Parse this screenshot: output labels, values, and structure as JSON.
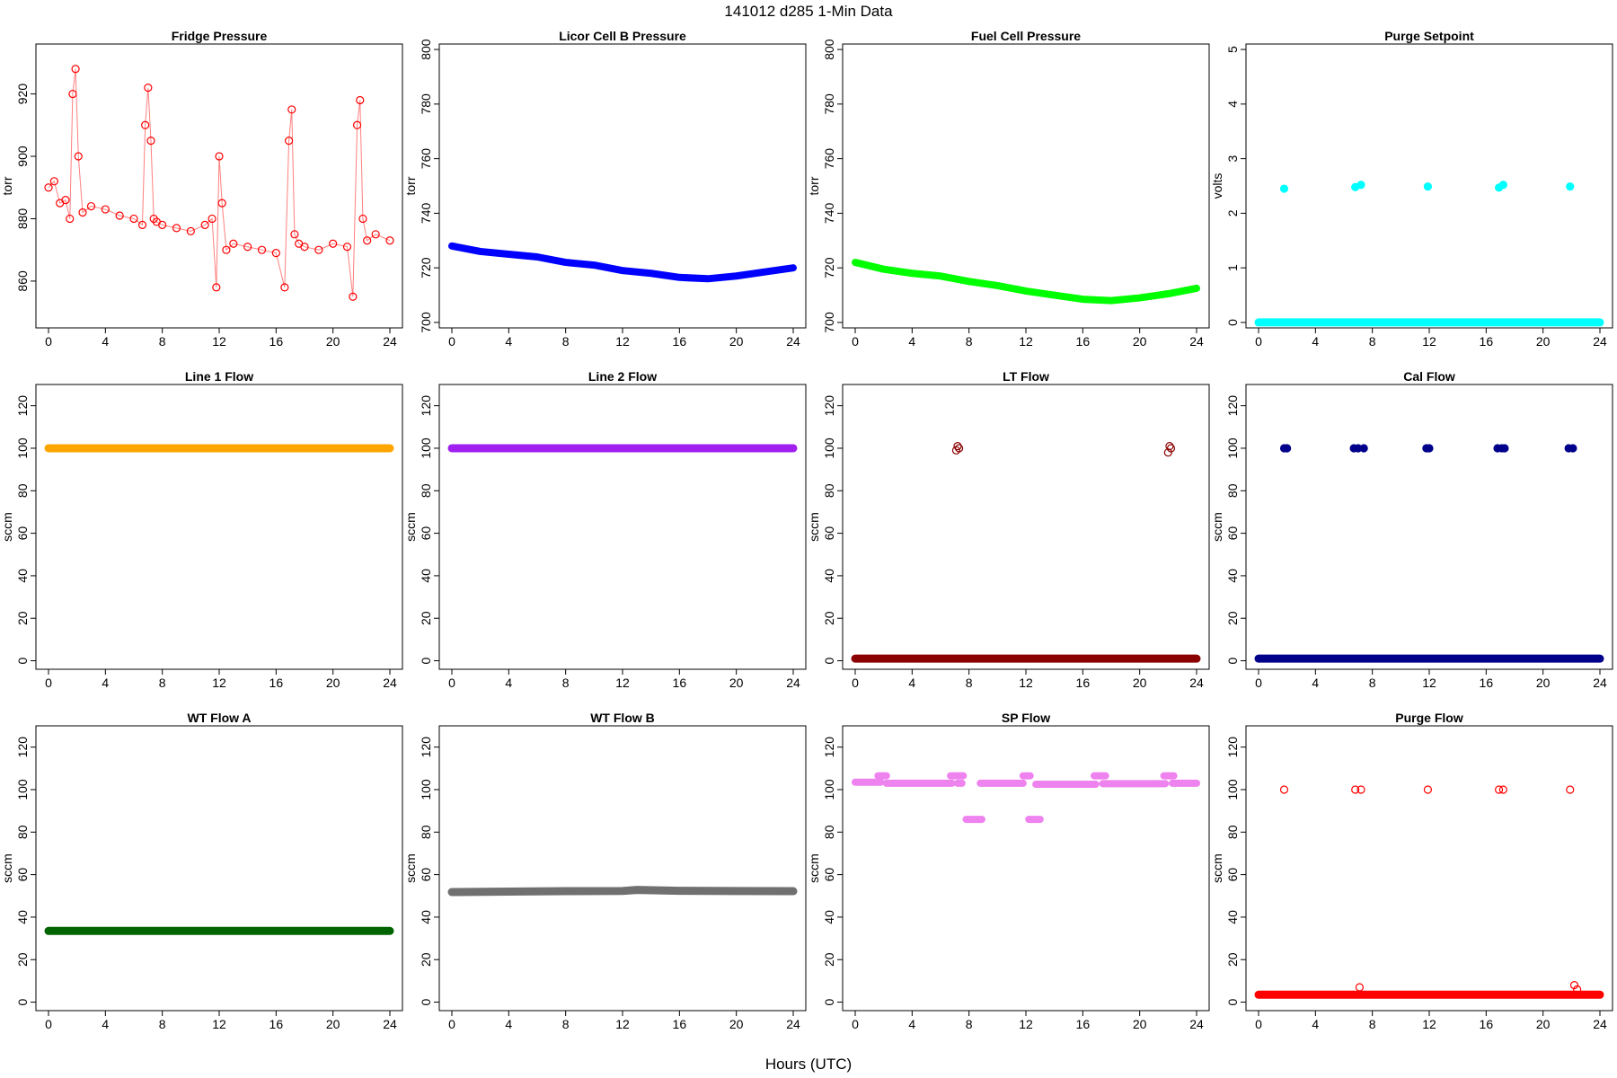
{
  "figure": {
    "title": "141012   d285   1-Min Data",
    "xlabel": "Hours (UTC)"
  },
  "chart_data": [
    {
      "type": "scatter",
      "title": "Fridge Pressure",
      "ylabel": "torr",
      "color": "#ff0000",
      "marker": "open-circle",
      "xlim": [
        0,
        24
      ],
      "ylim": [
        845,
        936
      ],
      "xticks": [
        "0",
        "4",
        "8",
        "12",
        "16",
        "20",
        "24"
      ],
      "yticks": [
        "860",
        "880",
        "900",
        "920"
      ],
      "series": [
        {
          "x": [
            0,
            0.4,
            0.8,
            1.2,
            1.5,
            1.7,
            1.9,
            2.1,
            2.4,
            3,
            4,
            5,
            6,
            6.6,
            6.8,
            7,
            7.2,
            7.4,
            7.6,
            8,
            9,
            10,
            11,
            11.5,
            11.8,
            12,
            12.2,
            12.5,
            13,
            14,
            15,
            16,
            16.6,
            16.9,
            17.1,
            17.3,
            17.6,
            18,
            19,
            20,
            21,
            21.4,
            21.7,
            21.9,
            22.1,
            22.4,
            23,
            24
          ],
          "y": [
            890,
            892,
            885,
            886,
            880,
            920,
            928,
            900,
            882,
            884,
            883,
            881,
            880,
            878,
            910,
            922,
            905,
            880,
            879,
            878,
            877,
            876,
            878,
            880,
            858,
            900,
            885,
            870,
            872,
            871,
            870,
            869,
            858,
            905,
            915,
            875,
            872,
            871,
            870,
            872,
            871,
            855,
            910,
            918,
            880,
            873,
            875,
            873
          ]
        }
      ]
    },
    {
      "type": "line",
      "title": "Licor Cell B Pressure",
      "ylabel": "torr",
      "color": "#0000ff",
      "xlim": [
        0,
        24
      ],
      "ylim": [
        698,
        802
      ],
      "xticks": [
        "0",
        "4",
        "8",
        "12",
        "16",
        "20",
        "24"
      ],
      "yticks": [
        "700",
        "720",
        "740",
        "760",
        "780",
        "800"
      ],
      "series": [
        {
          "x": [
            0,
            2,
            4,
            6,
            8,
            10,
            12,
            14,
            16,
            18,
            20,
            22,
            24
          ],
          "y": [
            728,
            726,
            725,
            724,
            722,
            721,
            719,
            718,
            716.5,
            716,
            717,
            718.5,
            720
          ]
        }
      ]
    },
    {
      "type": "line",
      "title": "Fuel Cell Pressure",
      "ylabel": "torr",
      "color": "#00ff00",
      "xlim": [
        0,
        24
      ],
      "ylim": [
        698,
        802
      ],
      "xticks": [
        "0",
        "4",
        "8",
        "12",
        "16",
        "20",
        "24"
      ],
      "yticks": [
        "700",
        "720",
        "740",
        "760",
        "780",
        "800"
      ],
      "series": [
        {
          "x": [
            0,
            2,
            4,
            6,
            8,
            10,
            12,
            14,
            16,
            18,
            20,
            22,
            24
          ],
          "y": [
            722,
            719.5,
            718,
            717,
            715,
            713.5,
            711.5,
            710,
            708.5,
            708,
            709,
            710.5,
            712.5
          ]
        }
      ]
    },
    {
      "type": "scatter",
      "title": "Purge Setpoint",
      "ylabel": "volts",
      "color": "#00ffff",
      "xlim": [
        0,
        24
      ],
      "ylim": [
        -0.1,
        5.1
      ],
      "xticks": [
        "0",
        "4",
        "8",
        "12",
        "16",
        "20",
        "24"
      ],
      "yticks": [
        "0",
        "1",
        "2",
        "3",
        "4",
        "5"
      ],
      "series": [
        {
          "name": "baseline",
          "x": [
            0,
            24
          ],
          "y": [
            0,
            0
          ],
          "style": "band"
        },
        {
          "name": "purges",
          "x": [
            1.8,
            6.8,
            7.2,
            11.9,
            16.9,
            17.2,
            21.9
          ],
          "y": [
            2.45,
            2.48,
            2.52,
            2.49,
            2.47,
            2.52,
            2.49
          ]
        }
      ]
    },
    {
      "type": "line",
      "title": "Line 1 Flow",
      "ylabel": "sccm",
      "color": "#ffa500",
      "xlim": [
        0,
        24
      ],
      "ylim": [
        -4,
        130
      ],
      "xticks": [
        "0",
        "4",
        "8",
        "12",
        "16",
        "20",
        "24"
      ],
      "yticks": [
        "0",
        "20",
        "40",
        "60",
        "80",
        "100",
        "120"
      ],
      "series": [
        {
          "x": [
            0,
            24
          ],
          "y": [
            100,
            100
          ],
          "style": "band"
        }
      ]
    },
    {
      "type": "line",
      "title": "Line 2 Flow",
      "ylabel": "sccm",
      "color": "#a020f0",
      "xlim": [
        0,
        24
      ],
      "ylim": [
        -4,
        130
      ],
      "xticks": [
        "0",
        "4",
        "8",
        "12",
        "16",
        "20",
        "24"
      ],
      "yticks": [
        "0",
        "20",
        "40",
        "60",
        "80",
        "100",
        "120"
      ],
      "series": [
        {
          "x": [
            0,
            24
          ],
          "y": [
            100,
            100
          ],
          "style": "band"
        }
      ]
    },
    {
      "type": "scatter",
      "title": "LT Flow",
      "ylabel": "sccm",
      "color": "#8b0000",
      "marker": "open-circle",
      "xlim": [
        0,
        24
      ],
      "ylim": [
        -4,
        130
      ],
      "xticks": [
        "0",
        "4",
        "8",
        "12",
        "16",
        "20",
        "24"
      ],
      "yticks": [
        "0",
        "20",
        "40",
        "60",
        "80",
        "100",
        "120"
      ],
      "series": [
        {
          "name": "baseline",
          "x": [
            0,
            24
          ],
          "y": [
            1,
            1
          ],
          "style": "band"
        },
        {
          "name": "spikes",
          "x": [
            7.1,
            7.2,
            7.3,
            22.0,
            22.1,
            22.2
          ],
          "y": [
            99,
            101,
            100,
            98,
            101,
            100
          ]
        }
      ]
    },
    {
      "type": "scatter",
      "title": "Cal Flow",
      "ylabel": "sccm",
      "color": "#00008b",
      "xlim": [
        0,
        24
      ],
      "ylim": [
        -4,
        130
      ],
      "xticks": [
        "0",
        "4",
        "8",
        "12",
        "16",
        "20",
        "24"
      ],
      "yticks": [
        "0",
        "20",
        "40",
        "60",
        "80",
        "100",
        "120"
      ],
      "series": [
        {
          "name": "baseline",
          "x": [
            0,
            24
          ],
          "y": [
            1,
            1
          ],
          "style": "band"
        },
        {
          "name": "cals",
          "x": [
            1.8,
            2.0,
            6.7,
            7.0,
            7.4,
            11.8,
            12.0,
            16.8,
            17.1,
            17.3,
            21.8,
            22.1
          ],
          "y": [
            100,
            100,
            100,
            100,
            100,
            100,
            100,
            100,
            100,
            100,
            100,
            100
          ]
        }
      ]
    },
    {
      "type": "scatter",
      "title": "WT Flow A",
      "ylabel": "sccm",
      "color": "#006400",
      "marker": "open-circle",
      "xlim": [
        0,
        24
      ],
      "ylim": [
        -4,
        130
      ],
      "xticks": [
        "0",
        "4",
        "8",
        "12",
        "16",
        "20",
        "24"
      ],
      "yticks": [
        "0",
        "20",
        "40",
        "60",
        "80",
        "100",
        "120"
      ],
      "series": [
        {
          "x": [
            0,
            24
          ],
          "y": [
            33.5,
            33.5
          ],
          "style": "band"
        }
      ]
    },
    {
      "type": "line",
      "title": "WT Flow B",
      "ylabel": "sccm",
      "color": "#707070",
      "xlim": [
        0,
        24
      ],
      "ylim": [
        -4,
        130
      ],
      "xticks": [
        "0",
        "4",
        "8",
        "12",
        "16",
        "20",
        "24"
      ],
      "yticks": [
        "0",
        "20",
        "40",
        "60",
        "80",
        "100",
        "120"
      ],
      "series": [
        {
          "x": [
            0,
            4,
            8,
            12,
            13,
            16,
            20,
            24
          ],
          "y": [
            51.8,
            52.0,
            52.2,
            52.3,
            52.8,
            52.4,
            52.3,
            52.2
          ],
          "style": "band"
        }
      ]
    },
    {
      "type": "scatter",
      "title": "SP Flow",
      "ylabel": "sccm",
      "color": "#ee82ee",
      "xlim": [
        0,
        24
      ],
      "ylim": [
        -4,
        130
      ],
      "xticks": [
        "0",
        "4",
        "8",
        "12",
        "16",
        "20",
        "24"
      ],
      "yticks": [
        "0",
        "20",
        "40",
        "60",
        "80",
        "100",
        "120"
      ],
      "series": [
        {
          "name": "segments",
          "style": "segments",
          "x": [
            [
              0,
              1.8
            ],
            [
              1.6,
              2.2
            ],
            [
              2.2,
              6.8
            ],
            [
              6.7,
              7.6
            ],
            [
              7.2,
              7.5
            ],
            [
              7.8,
              8.9
            ],
            [
              8.8,
              11.8
            ],
            [
              11.8,
              12.3
            ],
            [
              12.2,
              13.0
            ],
            [
              12.7,
              16.9
            ],
            [
              16.8,
              17.6
            ],
            [
              17.4,
              21.8
            ],
            [
              21.7,
              22.4
            ],
            [
              22.3,
              24
            ]
          ],
          "y": [
            103.5,
            106.5,
            103,
            106.5,
            103,
            86,
            103,
            106.5,
            86,
            102.5,
            106.5,
            102.8,
            106.5,
            103
          ]
        }
      ]
    },
    {
      "type": "scatter",
      "title": "Purge Flow",
      "ylabel": "sccm",
      "color": "#ff0000",
      "marker": "open-circle",
      "xlim": [
        0,
        24
      ],
      "ylim": [
        -4,
        130
      ],
      "xticks": [
        "0",
        "4",
        "8",
        "12",
        "16",
        "20",
        "24"
      ],
      "yticks": [
        "0",
        "20",
        "40",
        "60",
        "80",
        "100",
        "120"
      ],
      "series": [
        {
          "name": "baseline",
          "x": [
            0,
            24
          ],
          "y": [
            3.5,
            3.5
          ],
          "style": "band"
        },
        {
          "name": "purges",
          "x": [
            1.8,
            6.8,
            7.2,
            11.9,
            16.9,
            17.2,
            21.9
          ],
          "y": [
            100,
            100,
            100,
            100,
            100,
            100,
            100
          ]
        },
        {
          "name": "bumps",
          "x": [
            7.1,
            22.2,
            22.4
          ],
          "y": [
            7,
            8,
            6
          ]
        }
      ]
    }
  ]
}
